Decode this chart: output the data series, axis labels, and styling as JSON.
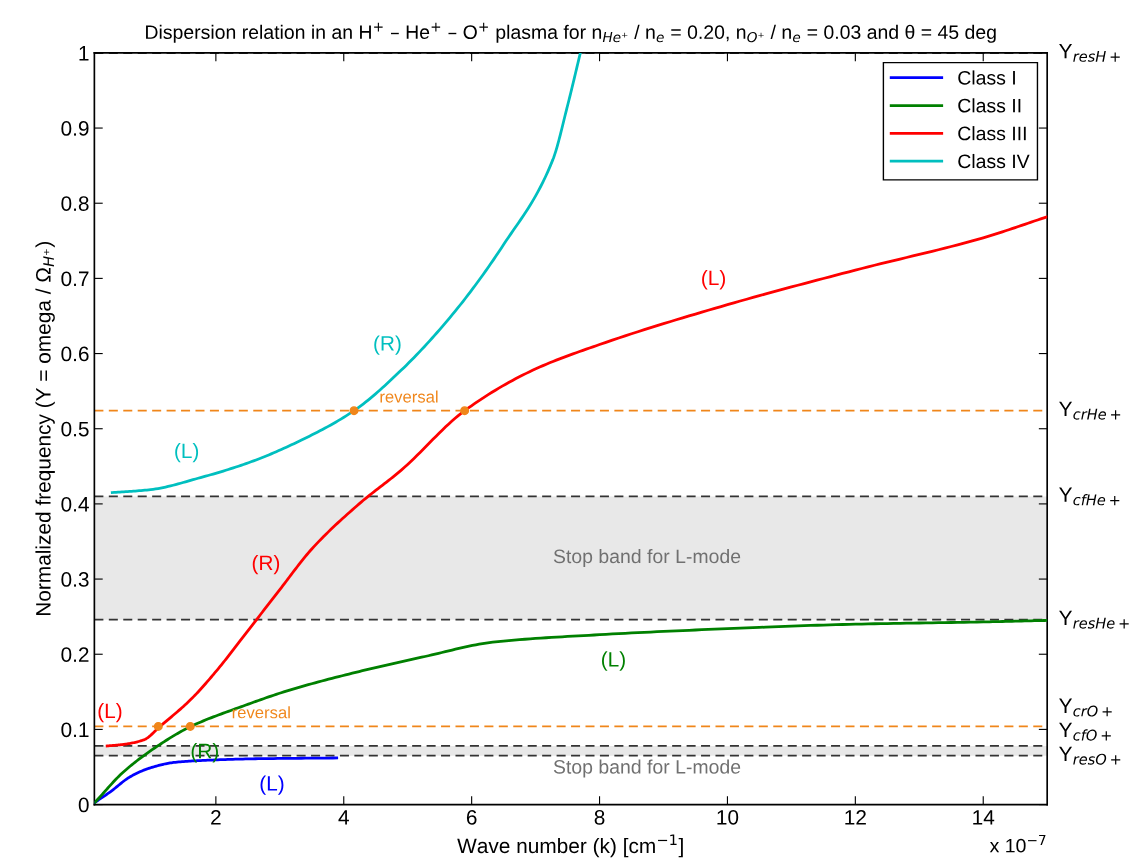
{
  "chart_data": {
    "type": "line",
    "title": "Dispersion relation in an H$^{+}$ – He$^{+}$ – O$^{+}$ plasma for n$_{He⁺}$ / n$_{e}$ = 0.20, n$_{O⁺}$ / n$_{e}$ = 0.03 and θ = 45 deg",
    "xlabel": "Wave number (k) [cm$^{−1}$]",
    "ylabel": "Normalized frequency (Y = omega / Ω$_{H⁺}$)",
    "xlim": [
      0.1,
      15
    ],
    "xticks": [
      2,
      4,
      6,
      8,
      10,
      12,
      14
    ],
    "ylim": [
      0,
      1
    ],
    "yticks": [
      0,
      0.1,
      0.2,
      0.3,
      0.4,
      0.5,
      0.6,
      0.7,
      0.8,
      0.9,
      1
    ],
    "legend": "top right",
    "grid": false,
    "line_style": "solid",
    "series": [
      {
        "name": "Class I",
        "color": "#0000ff",
        "x": [
          0.11,
          0.35,
          0.66,
          0.98,
          1.34,
          1.87,
          2.66,
          3.89
        ],
        "values": [
          0.003,
          0.017,
          0.037,
          0.049,
          0.056,
          0.059,
          0.061,
          0.062
        ]
      },
      {
        "name": "Class II",
        "color": "#008000",
        "x": [
          0.11,
          0.55,
          1.09,
          1.61,
          2.39,
          3.18,
          4.24,
          5.27,
          6.33,
          8,
          10,
          12,
          14,
          15
        ],
        "values": [
          0.003,
          0.043,
          0.078,
          0.104,
          0.13,
          0.153,
          0.177,
          0.197,
          0.216,
          0.226,
          0.234,
          0.24,
          0.243,
          0.245
        ]
      },
      {
        "name": "Class III",
        "color": "#ff0000",
        "x": [
          0.3,
          0.55,
          0.87,
          1.14,
          1.61,
          2.03,
          2.39,
          3.0,
          3.5,
          4.24,
          4.9,
          5.89,
          6.96,
          8,
          10,
          12,
          14,
          15
        ],
        "values": [
          0.078,
          0.08,
          0.086,
          0.105,
          0.14,
          0.18,
          0.219,
          0.286,
          0.34,
          0.4,
          0.445,
          0.524,
          0.578,
          0.612,
          0.665,
          0.711,
          0.754,
          0.782
        ]
      },
      {
        "name": "Class IV",
        "color": "#00bfbf",
        "x": [
          0.38,
          0.98,
          1.76,
          2.55,
          3.34,
          4.16,
          4.9,
          5.7,
          6.5,
          7.27,
          7.5,
          7.7
        ],
        "values": [
          0.415,
          0.419,
          0.435,
          0.456,
          0.485,
          0.524,
          0.578,
          0.652,
          0.745,
          0.858,
          0.93,
          1.0
        ]
      },
      {
        "color": "#f0861a",
        "type": "scatter",
        "marker": "circle",
        "x": [
          1.1,
          1.6,
          4.16,
          5.89
        ],
        "values": [
          0.104,
          0.104,
          0.524,
          0.524
        ]
      }
    ],
    "ref_lines": [
      {
        "axis": "y",
        "value": 1,
        "label": "Y$_{resH+}$",
        "color": "#000000",
        "line_style": "dashed"
      },
      {
        "axis": "y",
        "value": 0.524,
        "label": "Y$_{crHe+}$",
        "color": "#f0861a",
        "line_style": "dashed"
      },
      {
        "axis": "y",
        "value": 0.41,
        "label": "Y$_{cfHe+}$",
        "color": "#333333",
        "line_style": "dashed"
      },
      {
        "axis": "y",
        "value": 0.246,
        "label": "Y$_{resHe+}$",
        "color": "#333333",
        "line_style": "dashed"
      },
      {
        "axis": "y",
        "value": 0.104,
        "label": "Y$_{crO+}$",
        "color": "#f0861a",
        "line_style": "dashed"
      },
      {
        "axis": "y",
        "value": 0.078,
        "label": "Y$_{cfO+}$",
        "color": "#333333",
        "line_style": "dashed"
      },
      {
        "axis": "y",
        "value": 0.065,
        "label": "Y$_{resO+}$",
        "color": "#333333",
        "line_style": "dashed"
      }
    ],
    "bands": [
      {
        "axis": "y",
        "from": 0.246,
        "to": 0.41,
        "label": "Stop band for L-mode",
        "color": "#e8e8e8"
      },
      {
        "axis": "y",
        "from": 0.065,
        "to": 0.078,
        "label": "Stop band for L-mode",
        "color": "#e8e8e8"
      }
    ],
    "annotations": [
      {
        "text": "(R)",
        "x": 4.9,
        "y": 0.578
      },
      {
        "text": "(L)",
        "x": 1.76,
        "y": 0.435
      },
      {
        "text": "(L)",
        "x": 10,
        "y": 0.665
      },
      {
        "text": "(R)",
        "x": 3.0,
        "y": 0.286
      },
      {
        "text": "(L)",
        "x": 0.3,
        "y": 0.078
      },
      {
        "text": "(R)",
        "x": 1.61,
        "y": 0.104
      },
      {
        "text": "(L)",
        "x": 2.66,
        "y": 0.061
      },
      {
        "text": "(L)",
        "x": 8,
        "y": 0.226
      },
      {
        "text": "reversal",
        "x": 5.02,
        "y": 0.524
      },
      {
        "text": "reversal",
        "x": 2.71,
        "y": 0.104
      },
      "x 10$^{−7}$"
    ]
  }
}
